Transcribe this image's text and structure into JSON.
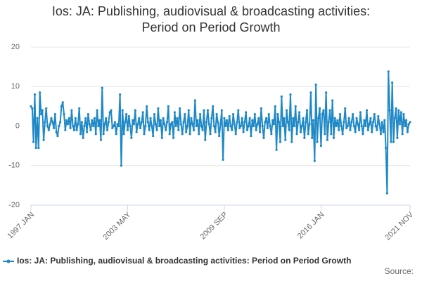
{
  "chart_data": {
    "type": "line",
    "title_lines": [
      "Ios: JA: Publishing, audiovisual & broadcasting activities:",
      "Period on Period Growth"
    ],
    "source_label": "Source:",
    "categories": [
      "1997 JAN",
      null,
      null,
      null,
      null,
      null,
      null,
      null,
      null,
      null,
      null,
      null,
      null,
      null,
      null,
      null,
      null,
      null,
      null,
      null,
      null,
      null,
      null,
      null,
      null,
      null,
      null,
      null,
      null,
      null,
      null,
      null,
      null,
      null,
      null,
      null,
      null,
      null,
      null,
      null,
      null,
      null,
      null,
      null,
      null,
      null,
      null,
      null,
      null,
      null,
      null,
      null,
      null,
      null,
      null,
      null,
      null,
      null,
      null,
      null,
      null,
      null,
      null,
      null,
      null,
      null,
      null,
      null,
      null,
      null,
      null,
      null,
      null,
      null,
      null,
      null,
      "2003 MAY",
      null,
      null,
      null,
      null,
      null,
      null,
      null,
      null,
      null,
      null,
      null,
      null,
      null,
      null,
      null,
      null,
      null,
      null,
      null,
      null,
      null,
      null,
      null,
      null,
      null,
      null,
      null,
      null,
      null,
      null,
      null,
      null,
      null,
      null,
      null,
      null,
      null,
      null,
      null,
      null,
      null,
      null,
      null,
      null,
      null,
      null,
      null,
      null,
      null,
      null,
      null,
      null,
      null,
      null,
      null,
      null,
      null,
      null,
      null,
      null,
      null,
      null,
      null,
      null,
      null,
      null,
      null,
      null,
      null,
      null,
      null,
      null,
      null,
      null,
      null,
      "2009 SEP",
      null,
      null,
      null,
      null,
      null,
      null,
      null,
      null,
      null,
      null,
      null,
      null,
      null,
      null,
      null,
      null,
      null,
      null,
      null,
      null,
      null,
      null,
      null,
      null,
      null,
      null,
      null,
      null,
      null,
      null,
      null,
      null,
      null,
      null,
      null,
      null,
      null,
      null,
      null,
      null,
      null,
      null,
      null,
      null,
      null,
      null,
      null,
      null,
      null,
      null,
      null,
      null,
      null,
      null,
      null,
      null,
      null,
      null,
      null,
      null,
      null,
      null,
      null,
      null,
      null,
      null,
      null,
      null,
      null,
      null,
      null,
      null,
      null,
      null,
      null,
      "2016 JAN",
      null,
      null,
      null,
      null,
      null,
      null,
      null,
      null,
      null,
      null,
      null,
      null,
      null,
      null,
      null,
      null,
      null,
      null,
      null,
      null,
      null,
      null,
      null,
      null,
      null,
      null,
      null,
      null,
      null,
      null,
      null,
      null,
      null,
      null,
      null,
      null,
      null,
      null,
      null,
      null,
      null,
      null,
      null,
      null,
      null,
      null,
      null,
      null,
      null,
      null,
      null,
      null,
      null,
      null,
      null,
      null,
      null,
      null,
      null,
      null,
      null,
      null,
      null,
      null,
      null,
      null,
      null,
      null,
      null,
      "2021 NOV"
    ],
    "series": [
      {
        "name": "Ios: JA: Publishing, audiovisual & broadcasting activities: Period on Period Growth",
        "color": "#1f88c6",
        "values": [
          5,
          4.5,
          -4,
          8,
          -5.5,
          2,
          -5.5,
          8.5,
          3,
          4,
          -3.5,
          1,
          4.5,
          0,
          -1,
          0.5,
          2,
          1,
          -0.5,
          3,
          -1.5,
          -2.5,
          0,
          1,
          5,
          6,
          3,
          -1,
          1.5,
          0.5,
          2,
          -0.5,
          4,
          0,
          -1,
          2,
          -1,
          0.5,
          4.5,
          -2,
          1,
          -3,
          0,
          2,
          -1.5,
          3,
          0.5,
          -1,
          1.5,
          0,
          2,
          -2,
          4,
          0,
          1.5,
          -3.5,
          9.7,
          -2,
          0.5,
          2,
          -1,
          1,
          3.5,
          4,
          -0.5,
          0,
          1,
          -2,
          0.5,
          0,
          8,
          -10,
          4,
          -2,
          1,
          3,
          -1,
          2.5,
          0,
          -3,
          1.5,
          0.5,
          4,
          -1.5,
          0.5,
          2,
          -0.5,
          1,
          3.5,
          -2,
          0,
          5,
          1,
          -1,
          2,
          0,
          -2.5,
          3,
          0.5,
          -1,
          4.5,
          0,
          1.5,
          -3,
          2,
          0.5,
          -1,
          1,
          5,
          -2,
          0.5,
          1,
          -3,
          3.5,
          0,
          2,
          -1,
          4.5,
          0.5,
          -2,
          1,
          3,
          -1.5,
          0,
          4,
          -2,
          2,
          0.5,
          -1,
          6.5,
          0,
          1.5,
          -2,
          3,
          0,
          -1,
          4,
          -3.5,
          1,
          4,
          0.5,
          -2,
          2,
          5,
          0,
          -1.5,
          3,
          1,
          -2.5,
          0.5,
          4,
          -8.5,
          2,
          0,
          1.5,
          -1,
          2.5,
          0,
          -1,
          3,
          0.5,
          -2,
          1,
          4,
          -0.5,
          0,
          2,
          -1.5,
          1,
          3.5,
          -1,
          0,
          2,
          -2.5,
          1.5,
          0,
          3,
          -1,
          0.5,
          2,
          -1.5,
          4.5,
          0,
          -3,
          1,
          2,
          -0.5,
          3,
          0,
          -2,
          1.5,
          0.5,
          5,
          -6,
          3,
          1,
          -4,
          7.5,
          0,
          2,
          -3.5,
          4,
          1,
          -1,
          8,
          -4,
          2,
          0,
          5,
          -2,
          1,
          3.5,
          -1.5,
          0,
          2,
          -3,
          1,
          4,
          -2,
          0.5,
          8.5,
          -3,
          1.5,
          -8.8,
          10.5,
          -4,
          2,
          4.5,
          -5,
          3,
          4,
          -2,
          8.5,
          -3.5,
          1,
          4,
          -2,
          6.5,
          -3,
          2,
          0,
          1.5,
          -1,
          3,
          0,
          -2,
          1,
          4.5,
          -0.5,
          0,
          2,
          -1,
          1,
          3,
          0,
          -1.5,
          2,
          0.5,
          -1,
          3.5,
          0,
          -2,
          1.5,
          0,
          4,
          -1,
          0.5,
          2,
          -1.5,
          1,
          3,
          0,
          -1,
          2.5,
          0.5,
          -2,
          1,
          -1.5,
          1.5,
          -5.5,
          -17,
          13.8,
          4,
          -4,
          11,
          -4,
          2,
          4.5,
          -3,
          4,
          0.5,
          3.5,
          -2,
          3,
          0,
          1.5,
          -1.5,
          0.5,
          1
        ]
      }
    ],
    "ylim": [
      -20,
      20
    ],
    "yticks": [
      -20,
      -10,
      0,
      10,
      20
    ],
    "grid": true
  }
}
